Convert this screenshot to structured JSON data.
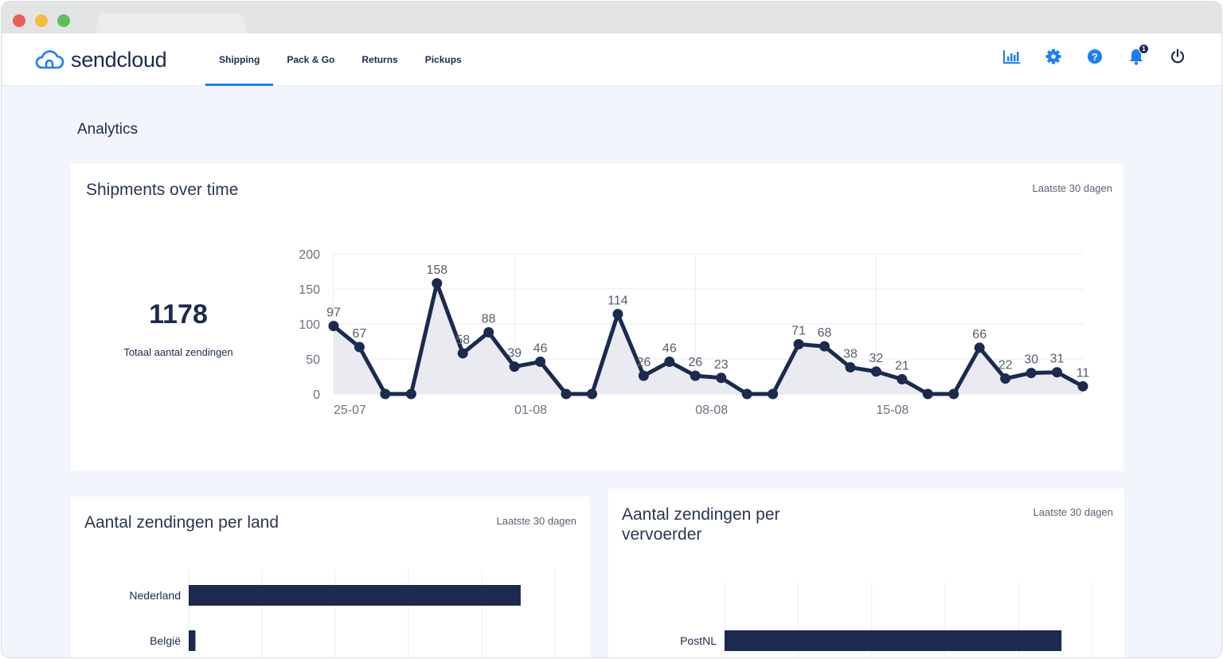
{
  "app": {
    "logo_text": "sendcloud",
    "nav": [
      {
        "label": "Shipping",
        "active": true
      },
      {
        "label": "Pack & Go",
        "active": false
      },
      {
        "label": "Returns",
        "active": false
      },
      {
        "label": "Pickups",
        "active": false
      }
    ],
    "icons": [
      "analytics-icon",
      "settings-icon",
      "help-icon",
      "notifications-icon",
      "power-icon"
    ],
    "notification_count": "1",
    "accent_color": "#1a7ff5",
    "navy_color": "#1b2a4e"
  },
  "page": {
    "title": "Analytics"
  },
  "shipments_card": {
    "title": "Shipments over time",
    "range": "Laatste 30 dagen",
    "total": "1178",
    "total_label": "Totaal aantal zendingen"
  },
  "country_card": {
    "title": "Aantal zendingen per land",
    "range": "Laatste 30 dagen"
  },
  "carrier_card": {
    "title": "Aantal zendingen per vervoerder",
    "range": "Laatste 30 dagen"
  },
  "chart_data": [
    {
      "type": "line",
      "x": [
        "25-07",
        "26-07",
        "27-07",
        "28-07",
        "29-07",
        "30-07",
        "31-07",
        "01-08",
        "02-08",
        "03-08",
        "04-08",
        "05-08",
        "06-08",
        "07-08",
        "08-08",
        "09-08",
        "10-08",
        "11-08",
        "12-08",
        "13-08",
        "14-08",
        "15-08",
        "16-08",
        "17-08",
        "18-08",
        "19-08",
        "20-08",
        "21-08",
        "22-08",
        "23-08"
      ],
      "y": [
        97,
        67,
        0,
        0,
        158,
        58,
        88,
        39,
        46,
        0,
        0,
        114,
        26,
        46,
        26,
        23,
        0,
        0,
        71,
        68,
        38,
        32,
        21,
        0,
        0,
        66,
        22,
        30,
        31,
        11
      ],
      "data_labels": [
        "97",
        "67",
        "",
        "",
        "158",
        "58",
        "88",
        "39",
        "46",
        "",
        "",
        "114",
        "26",
        "46",
        "26",
        "23",
        "",
        "",
        "71",
        "68",
        "38",
        "32",
        "21",
        "",
        "",
        "66",
        "22",
        "30",
        "31",
        "11"
      ],
      "x_tick_labels": [
        "25-07",
        "01-08",
        "08-08",
        "15-08"
      ],
      "y_ticks": [
        0,
        50,
        100,
        150,
        200
      ],
      "ylim": [
        0,
        200
      ],
      "grid": true,
      "line_color": "#1b2a4e",
      "area_color": "#e9ebf1"
    },
    {
      "type": "bar",
      "orientation": "horizontal",
      "categories": [
        "Nederland",
        "België"
      ],
      "values": [
        1133,
        23
      ],
      "xlim": [
        0,
        1250
      ],
      "grid": true,
      "bar_color": "#1b2a4e"
    },
    {
      "type": "bar",
      "orientation": "horizontal",
      "categories": [
        "PostNL"
      ],
      "values": [
        1145
      ],
      "xlim": [
        0,
        1250
      ],
      "grid": true,
      "bar_color": "#1b2a4e"
    }
  ]
}
